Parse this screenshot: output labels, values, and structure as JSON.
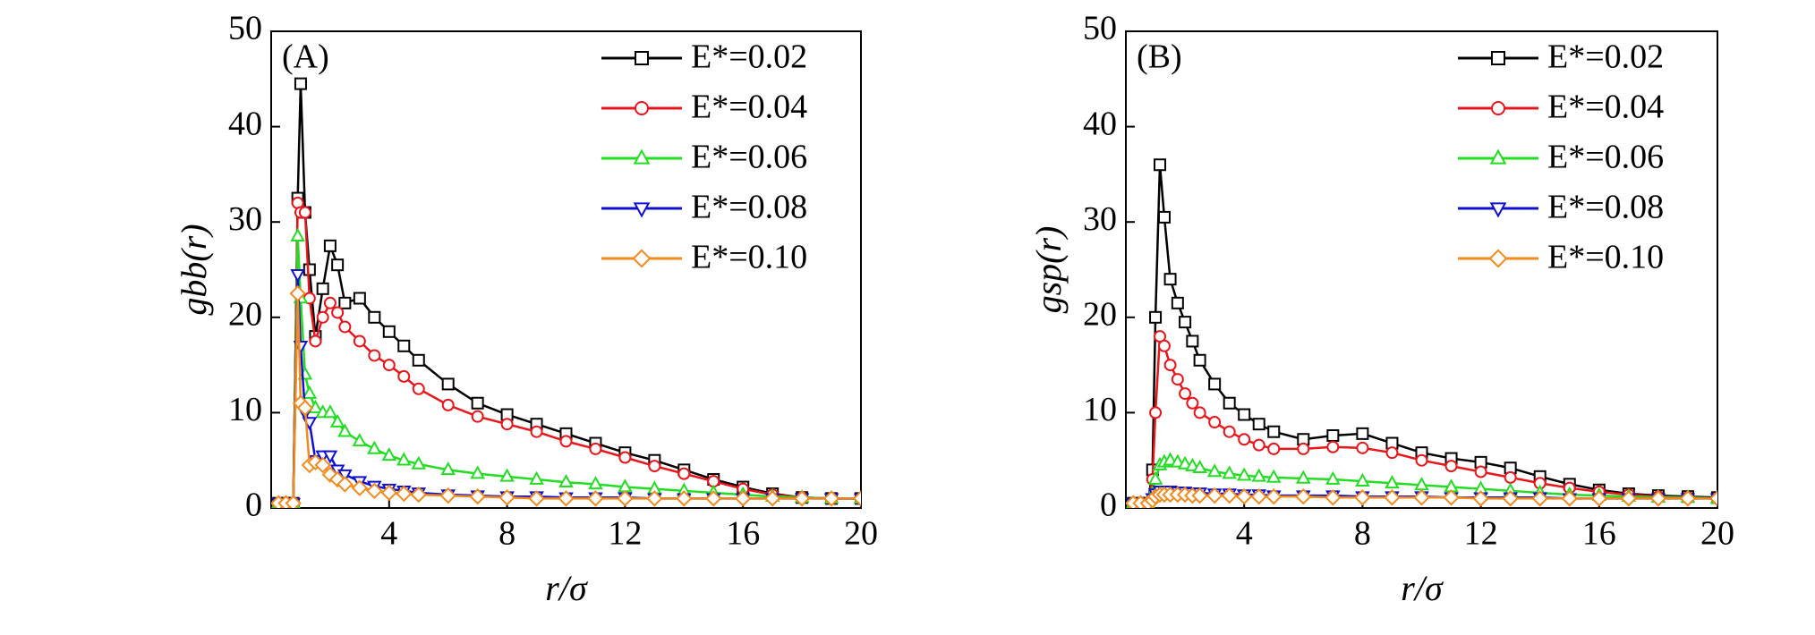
{
  "chart_data": [
    {
      "type": "line",
      "annotation": "(A)",
      "x_label": "r/σ",
      "y_label": "gbb(r)",
      "legend": "upper right",
      "x": [
        0.25,
        0.5,
        0.75,
        0.9,
        1.0,
        1.15,
        1.3,
        1.5,
        1.75,
        2.0,
        2.25,
        2.5,
        3,
        3.5,
        4,
        4.5,
        5,
        6,
        7,
        8,
        9,
        10,
        11,
        12,
        13,
        14,
        15,
        16,
        17,
        18,
        19,
        20
      ],
      "xlim": [
        0,
        20
      ],
      "xticks": [
        4,
        8,
        12,
        16,
        20
      ],
      "ylim": [
        0,
        50
      ],
      "yticks": [
        0,
        10,
        20,
        30,
        40,
        50
      ],
      "series": [
        {
          "name": "E*=0.02",
          "color": "#000000",
          "marker": "square",
          "values": [
            0.5,
            0.5,
            0.5,
            32.5,
            44.5,
            31,
            25,
            18,
            23,
            27.5,
            25.5,
            21.5,
            22,
            20,
            18.5,
            17,
            15.5,
            13,
            11,
            9.8,
            8.8,
            7.8,
            6.8,
            5.8,
            5,
            4,
            3,
            2.2,
            1.5,
            1.1,
            1,
            1
          ]
        },
        {
          "name": "E*=0.04",
          "color": "#e8151b",
          "marker": "circle",
          "values": [
            0.5,
            0.5,
            0.5,
            32,
            31,
            31,
            22,
            17.5,
            20,
            21.5,
            20.5,
            19,
            17.5,
            16,
            15,
            13.8,
            12.5,
            10.8,
            9.6,
            8.8,
            8,
            7,
            6.2,
            5.3,
            4.4,
            3.6,
            2.8,
            2,
            1.4,
            1.1,
            1,
            1
          ]
        },
        {
          "name": "E*=0.06",
          "color": "#22dd22",
          "marker": "triangle-up",
          "values": [
            0.5,
            0.5,
            0.5,
            28.5,
            22,
            14,
            12,
            10.5,
            10,
            10,
            9,
            8,
            7,
            6.2,
            5.5,
            5,
            4.6,
            4,
            3.6,
            3.3,
            3,
            2.7,
            2.5,
            2.2,
            2,
            1.8,
            1.6,
            1.4,
            1.2,
            1.1,
            1,
            1
          ]
        },
        {
          "name": "E*=0.08",
          "color": "#1010d0",
          "marker": "triangle-down",
          "values": [
            0.5,
            0.5,
            0.5,
            24.5,
            17,
            10,
            9,
            5,
            5.5,
            5.5,
            4,
            3.5,
            2.8,
            2.3,
            2,
            1.8,
            1.6,
            1.4,
            1.3,
            1.2,
            1.2,
            1.1,
            1.1,
            1.1,
            1,
            1,
            1,
            1,
            1,
            1,
            1,
            1
          ]
        },
        {
          "name": "E*=0.10",
          "color": "#f28a1e",
          "marker": "diamond",
          "values": [
            0.5,
            0.5,
            0.5,
            22.5,
            11,
            10.5,
            4.5,
            4.8,
            4.5,
            3.5,
            3,
            2.5,
            2.1,
            1.8,
            1.6,
            1.5,
            1.4,
            1.3,
            1.2,
            1.1,
            1,
            1,
            1,
            1,
            1,
            1,
            1,
            1,
            1,
            1,
            1,
            1
          ]
        }
      ]
    },
    {
      "type": "line",
      "annotation": "(B)",
      "x_label": "r/σ",
      "y_label": "gsp(r)",
      "legend": "upper right",
      "x": [
        0.25,
        0.5,
        0.75,
        0.9,
        1.0,
        1.15,
        1.3,
        1.5,
        1.75,
        2.0,
        2.25,
        2.5,
        3,
        3.5,
        4,
        4.5,
        5,
        6,
        7,
        8,
        9,
        10,
        11,
        12,
        13,
        14,
        15,
        16,
        17,
        18,
        19,
        20
      ],
      "xlim": [
        0,
        20
      ],
      "xticks": [
        4,
        8,
        12,
        16,
        20
      ],
      "ylim": [
        0,
        50
      ],
      "yticks": [
        0,
        10,
        20,
        30,
        40,
        50
      ],
      "series": [
        {
          "name": "E*=0.02",
          "color": "#000000",
          "marker": "square",
          "values": [
            0.5,
            0.5,
            0.5,
            4,
            20,
            36,
            30.5,
            24,
            21.5,
            19.5,
            17.5,
            15.5,
            13,
            11,
            9.8,
            8.8,
            8,
            7.2,
            7.6,
            7.8,
            6.8,
            5.8,
            5.2,
            4.8,
            4.2,
            3.3,
            2.5,
            1.9,
            1.5,
            1.3,
            1.2,
            1.1
          ]
        },
        {
          "name": "E*=0.04",
          "color": "#e8151b",
          "marker": "circle",
          "values": [
            0.5,
            0.5,
            0.5,
            3,
            10,
            18,
            17,
            15,
            13.5,
            12,
            11,
            10,
            9,
            8,
            7.2,
            6.6,
            6.2,
            6.2,
            6.4,
            6.3,
            5.8,
            5,
            4.4,
            3.8,
            3.2,
            2.6,
            2.1,
            1.7,
            1.4,
            1.2,
            1.1,
            1
          ]
        },
        {
          "name": "E*=0.06",
          "color": "#22dd22",
          "marker": "triangle-up",
          "values": [
            0.5,
            0.5,
            0.5,
            1.5,
            3,
            4.5,
            4.8,
            5,
            4.8,
            4.6,
            4.4,
            4.2,
            3.8,
            3.6,
            3.4,
            3.3,
            3.2,
            3.1,
            3,
            2.8,
            2.6,
            2.4,
            2.2,
            2,
            1.8,
            1.6,
            1.4,
            1.3,
            1.2,
            1.1,
            1.1,
            1
          ]
        },
        {
          "name": "E*=0.08",
          "color": "#1010d0",
          "marker": "triangle-down",
          "values": [
            0.5,
            0.5,
            0.5,
            1,
            1.5,
            1.8,
            1.8,
            1.8,
            1.7,
            1.7,
            1.6,
            1.6,
            1.5,
            1.5,
            1.4,
            1.4,
            1.3,
            1.3,
            1.3,
            1.2,
            1.2,
            1.2,
            1.1,
            1.1,
            1.1,
            1.1,
            1,
            1,
            1,
            1,
            1,
            1
          ]
        },
        {
          "name": "E*=0.10",
          "color": "#f28a1e",
          "marker": "diamond",
          "values": [
            0.5,
            0.5,
            0.5,
            0.8,
            1.2,
            1.4,
            1.4,
            1.4,
            1.4,
            1.4,
            1.3,
            1.3,
            1.3,
            1.3,
            1.2,
            1.2,
            1.2,
            1.2,
            1.1,
            1.1,
            1.1,
            1.1,
            1.1,
            1,
            1,
            1,
            1,
            1,
            1,
            1,
            1,
            1
          ]
        }
      ]
    }
  ]
}
